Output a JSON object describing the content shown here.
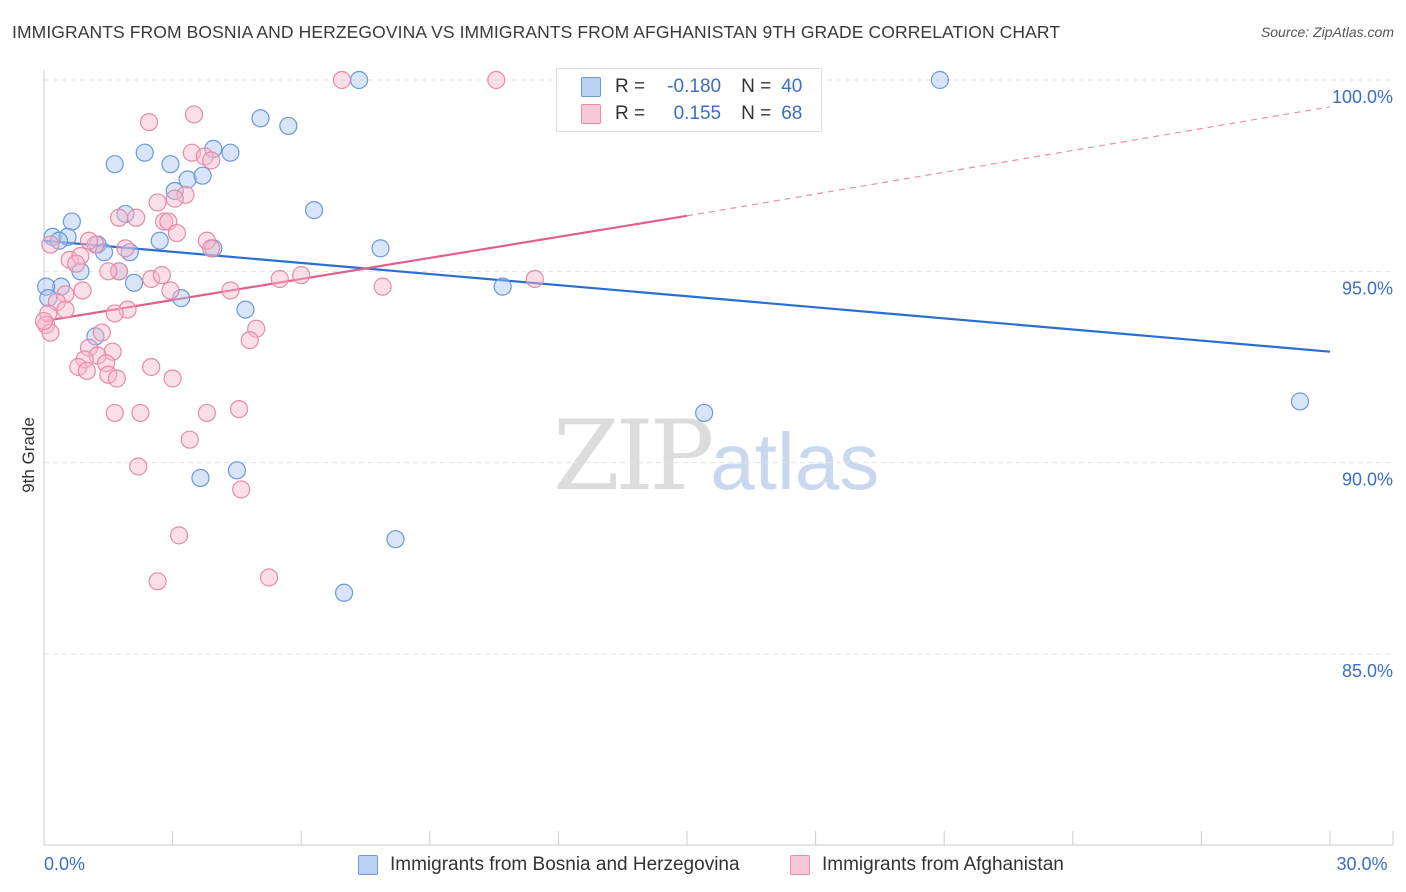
{
  "title": "IMMIGRANTS FROM BOSNIA AND HERZEGOVINA VS IMMIGRANTS FROM AFGHANISTAN 9TH GRADE CORRELATION CHART",
  "source": "Source: ZipAtlas.com",
  "watermark": {
    "zip": "ZIP",
    "atlas": "atlas"
  },
  "legend": {
    "blue": {
      "r_label": "R =",
      "r_value": "-0.180",
      "n_label": "N =",
      "n_value": "40"
    },
    "pink": {
      "r_label": "R =",
      "r_value": "0.155",
      "n_label": "N =",
      "n_value": "68"
    }
  },
  "bottom_legend": {
    "blue": "Immigrants from Bosnia and Herzegovina",
    "pink": "Immigrants from Afghanistan"
  },
  "colors": {
    "blue_fill": "#a9c6f0",
    "blue_stroke": "#6b98d8",
    "blue_line": "#2a6fd0",
    "pink_fill": "#f7b9cd",
    "pink_stroke": "#e68aa8",
    "pink_line": "#e0608a",
    "axis_text": "#3a6fc4",
    "grid": "#e2e2e2"
  },
  "chart_data": {
    "type": "scatter",
    "title": "IMMIGRANTS FROM BOSNIA AND HERZEGOVINA VS IMMIGRANTS FROM AFGHANISTAN 9TH GRADE CORRELATION CHART",
    "xlabel": "",
    "ylabel": "9th Grade",
    "xlim": [
      0,
      30
    ],
    "ylim": [
      80.5,
      101
    ],
    "x_tick_labels": [
      {
        "value": 0,
        "label": "0.0%"
      },
      {
        "value": 30,
        "label": "30.0%"
      }
    ],
    "y_tick_labels": [
      {
        "value": 100,
        "label": "100.0%"
      },
      {
        "value": 95,
        "label": "95.0%"
      },
      {
        "value": 90,
        "label": "90.0%"
      },
      {
        "value": 85,
        "label": "85.0%"
      }
    ],
    "series": [
      {
        "name": "Immigrants from Bosnia and Herzegovina",
        "color_key": "blue",
        "R": -0.18,
        "N": 40,
        "trend": {
          "x0": 0,
          "y0": 95.8,
          "x1": 30,
          "y1": 92.9
        },
        "points": [
          [
            7.35,
            100.0
          ],
          [
            20.9,
            100.0
          ],
          [
            5.05,
            99.0
          ],
          [
            5.7,
            98.8
          ],
          [
            2.35,
            98.1
          ],
          [
            3.95,
            98.2
          ],
          [
            4.35,
            98.1
          ],
          [
            1.65,
            97.8
          ],
          [
            2.95,
            97.8
          ],
          [
            3.35,
            97.4
          ],
          [
            3.7,
            97.5
          ],
          [
            3.05,
            97.1
          ],
          [
            6.3,
            96.6
          ],
          [
            1.9,
            96.5
          ],
          [
            0.65,
            96.3
          ],
          [
            0.2,
            95.9
          ],
          [
            0.55,
            95.9
          ],
          [
            0.35,
            95.8
          ],
          [
            1.25,
            95.7
          ],
          [
            2.7,
            95.8
          ],
          [
            7.85,
            95.6
          ],
          [
            3.95,
            95.6
          ],
          [
            2.0,
            95.5
          ],
          [
            1.4,
            95.5
          ],
          [
            1.75,
            95.0
          ],
          [
            0.85,
            95.0
          ],
          [
            2.1,
            94.7
          ],
          [
            10.7,
            94.6
          ],
          [
            0.4,
            94.6
          ],
          [
            3.2,
            94.3
          ],
          [
            4.7,
            94.0
          ],
          [
            1.2,
            93.3
          ],
          [
            15.4,
            91.3
          ],
          [
            29.3,
            91.6
          ],
          [
            4.5,
            89.8
          ],
          [
            3.65,
            89.6
          ],
          [
            8.2,
            88.0
          ],
          [
            7.0,
            86.6
          ],
          [
            0.05,
            94.6
          ],
          [
            0.1,
            94.3
          ]
        ]
      },
      {
        "name": "Immigrants from Afghanistan",
        "color_key": "pink",
        "R": 0.155,
        "N": 68,
        "trend": {
          "x0": 0,
          "y0": 93.7,
          "x1": 15.0,
          "y1": 96.45
        },
        "trend_dashed": {
          "x0": 15.0,
          "y0": 96.45,
          "x1": 30,
          "y1": 99.3
        },
        "points": [
          [
            6.95,
            100.0
          ],
          [
            10.55,
            100.0
          ],
          [
            3.5,
            99.1
          ],
          [
            2.45,
            98.9
          ],
          [
            3.45,
            98.1
          ],
          [
            3.75,
            98.0
          ],
          [
            3.9,
            97.9
          ],
          [
            3.3,
            97.0
          ],
          [
            3.05,
            96.9
          ],
          [
            2.65,
            96.8
          ],
          [
            1.75,
            96.4
          ],
          [
            2.15,
            96.4
          ],
          [
            2.8,
            96.3
          ],
          [
            2.9,
            96.3
          ],
          [
            3.1,
            96.0
          ],
          [
            0.15,
            95.7
          ],
          [
            1.2,
            95.7
          ],
          [
            1.05,
            95.8
          ],
          [
            1.9,
            95.6
          ],
          [
            3.8,
            95.8
          ],
          [
            3.9,
            95.6
          ],
          [
            0.6,
            95.3
          ],
          [
            0.85,
            95.4
          ],
          [
            0.75,
            95.2
          ],
          [
            1.75,
            95.0
          ],
          [
            1.5,
            95.0
          ],
          [
            2.5,
            94.8
          ],
          [
            2.75,
            94.9
          ],
          [
            5.5,
            94.8
          ],
          [
            6.0,
            94.9
          ],
          [
            11.45,
            94.8
          ],
          [
            7.9,
            94.6
          ],
          [
            0.9,
            94.5
          ],
          [
            0.5,
            94.4
          ],
          [
            4.35,
            94.5
          ],
          [
            2.95,
            94.5
          ],
          [
            0.3,
            94.2
          ],
          [
            0.5,
            94.0
          ],
          [
            0.1,
            93.9
          ],
          [
            1.95,
            94.0
          ],
          [
            1.65,
            93.9
          ],
          [
            0.05,
            93.6
          ],
          [
            0.15,
            93.4
          ],
          [
            1.35,
            93.4
          ],
          [
            4.95,
            93.5
          ],
          [
            4.8,
            93.2
          ],
          [
            1.6,
            92.9
          ],
          [
            1.05,
            93.0
          ],
          [
            1.25,
            92.8
          ],
          [
            0.95,
            92.7
          ],
          [
            1.45,
            92.6
          ],
          [
            0.8,
            92.5
          ],
          [
            2.5,
            92.5
          ],
          [
            1.5,
            92.3
          ],
          [
            1.7,
            92.2
          ],
          [
            3.0,
            92.2
          ],
          [
            1.0,
            92.4
          ],
          [
            1.65,
            91.3
          ],
          [
            2.25,
            91.3
          ],
          [
            3.8,
            91.3
          ],
          [
            4.55,
            91.4
          ],
          [
            3.4,
            90.6
          ],
          [
            2.2,
            89.9
          ],
          [
            4.6,
            89.3
          ],
          [
            3.15,
            88.1
          ],
          [
            2.65,
            86.9
          ],
          [
            5.25,
            87.0
          ],
          [
            0.0,
            93.7
          ]
        ]
      }
    ]
  }
}
